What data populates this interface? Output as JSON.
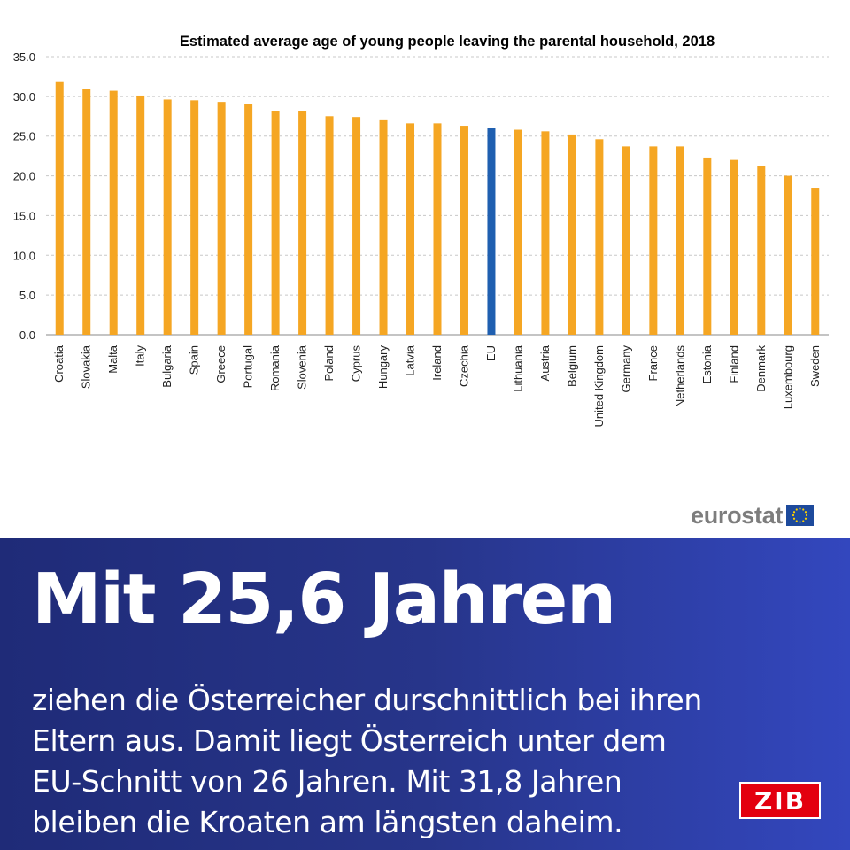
{
  "chart_data": {
    "type": "bar",
    "title": "Estimated average age of young people leaving the parental household, 2018",
    "categories": [
      "Croatia",
      "Slovakia",
      "Malta",
      "Italy",
      "Bulgaria",
      "Spain",
      "Greece",
      "Portugal",
      "Romania",
      "Slovenia",
      "Poland",
      "Cyprus",
      "Hungary",
      "Latvia",
      "Ireland",
      "Czechia",
      "EU",
      "Lithuania",
      "Austria",
      "Belgium",
      "United Kingdom",
      "Germany",
      "France",
      "Netherlands",
      "Estonia",
      "Finland",
      "Denmark",
      "Luxembourg",
      "Sweden"
    ],
    "values": [
      31.8,
      30.9,
      30.7,
      30.1,
      29.6,
      29.5,
      29.3,
      29.0,
      28.2,
      28.2,
      27.5,
      27.4,
      27.1,
      26.6,
      26.6,
      26.3,
      26.0,
      25.8,
      25.6,
      25.2,
      24.6,
      23.7,
      23.7,
      23.7,
      22.3,
      22.0,
      21.2,
      20.0,
      18.5
    ],
    "highlight_category": "EU",
    "ylim": [
      0,
      35
    ],
    "y_ticks": [
      "0.0",
      "5.0",
      "10.0",
      "15.0",
      "20.0",
      "25.0",
      "30.0",
      "35.0"
    ],
    "grid": true,
    "colors": {
      "bar": "#f5a623",
      "highlight": "#1f5fb0",
      "grid": "#c8c8c8"
    },
    "source": "eurostat"
  },
  "caption": {
    "headline": "Mit 25,6 Jahren",
    "lines": [
      "ziehen die Österreicher durschnittlich bei ihren",
      "Eltern aus. Damit liegt Österreich unter dem",
      "EU-Schnitt von 26 Jahren. Mit 31,8 Jahren",
      "bleiben die Kroaten am längsten daheim."
    ]
  },
  "badge": {
    "label": "ZIB",
    "color": "#e3000f"
  }
}
